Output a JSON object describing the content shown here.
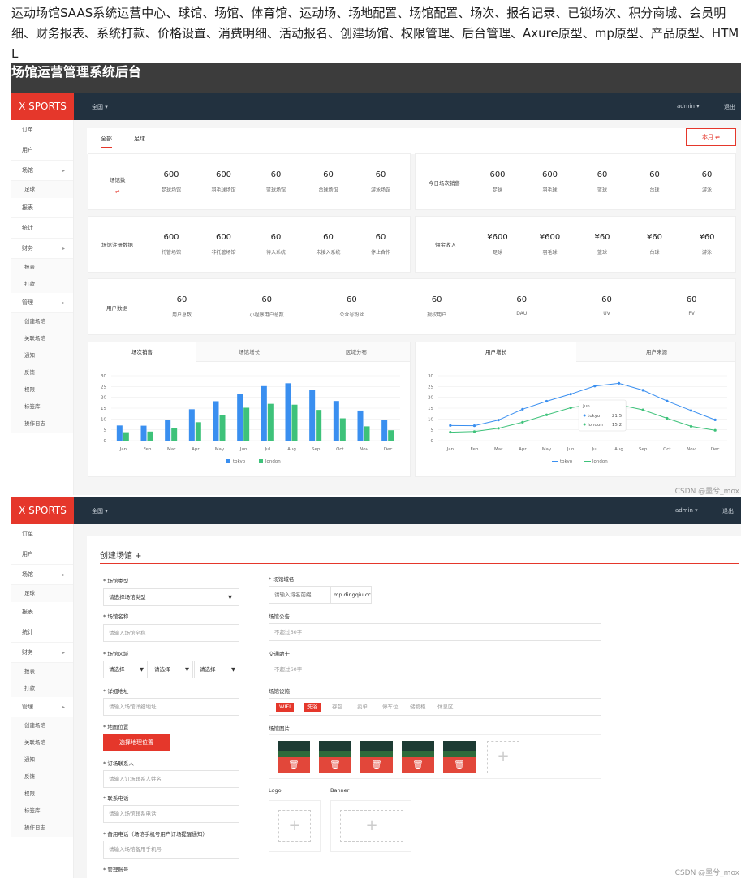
{
  "intro_text": "运动场馆SAAS系统运营中心、球馆、场馆、体育馆、运动场、场地配置、场馆配置、场次、报名记录、已锁场次、积分商城、会员明细、财务报表、系统打款、价格设置、消费明细、活动报名、创建场馆、权限管理、后台管理、Axure原型、mp原型、产品原型、HTML",
  "section_title": "场馆运营管理系统后台",
  "watermark": "CSDN @墨兮_mox",
  "app": {
    "logo": "X SPORTS",
    "nav_all": "全国 ▾",
    "nav_user": "admin ▾",
    "nav_logout": "退出"
  },
  "sidebar1": [
    {
      "label": "订单",
      "sub": false,
      "arrow": ""
    },
    {
      "label": "用户",
      "sub": false,
      "arrow": ""
    },
    {
      "label": "场馆",
      "sub": false,
      "arrow": "▸"
    },
    {
      "label": "足球",
      "sub": true,
      "arrow": ""
    },
    {
      "label": "报表",
      "sub": false,
      "arrow": ""
    },
    {
      "label": "统计",
      "sub": false,
      "arrow": ""
    },
    {
      "label": "财务",
      "sub": false,
      "arrow": "▸"
    },
    {
      "label": "报表",
      "sub": true,
      "arrow": ""
    },
    {
      "label": "打款",
      "sub": true,
      "arrow": ""
    },
    {
      "label": "管理",
      "sub": false,
      "arrow": "▸"
    },
    {
      "label": "创建场馆",
      "sub": true,
      "arrow": ""
    },
    {
      "label": "关联场馆",
      "sub": true,
      "arrow": ""
    },
    {
      "label": "通知",
      "sub": true,
      "arrow": ""
    },
    {
      "label": "反馈",
      "sub": true,
      "arrow": ""
    },
    {
      "label": "权限",
      "sub": true,
      "arrow": ""
    },
    {
      "label": "标签库",
      "sub": true,
      "arrow": ""
    },
    {
      "label": "操作日志",
      "sub": true,
      "arrow": ""
    }
  ],
  "dashboard": {
    "tab_all": "全部",
    "tab_football": "足球",
    "month_btn": "本月 ⇌",
    "row1": {
      "label": "场馆数",
      "swap": "⇌",
      "items": [
        {
          "n": "600",
          "l": "足球场馆"
        },
        {
          "n": "600",
          "l": "羽毛球场馆"
        },
        {
          "n": "60",
          "l": "篮球场馆"
        },
        {
          "n": "60",
          "l": "台球场馆"
        },
        {
          "n": "60",
          "l": "游泳场馆"
        }
      ]
    },
    "row1b": {
      "label": "今日场次销售",
      "items": [
        {
          "n": "600",
          "l": "足球"
        },
        {
          "n": "600",
          "l": "羽毛球"
        },
        {
          "n": "60",
          "l": "篮球"
        },
        {
          "n": "60",
          "l": "台球"
        },
        {
          "n": "60",
          "l": "游泳"
        }
      ]
    },
    "row2": {
      "label": "场馆注册数据",
      "items": [
        {
          "n": "600",
          "l": "托管场馆"
        },
        {
          "n": "600",
          "l": "非托管场馆"
        },
        {
          "n": "60",
          "l": "待入系统"
        },
        {
          "n": "60",
          "l": "未接入系统"
        },
        {
          "n": "60",
          "l": "停止合作"
        }
      ]
    },
    "row2b": {
      "label": "佣金收入",
      "items": [
        {
          "n": "¥600",
          "l": "足球"
        },
        {
          "n": "¥600",
          "l": "羽毛球"
        },
        {
          "n": "¥60",
          "l": "篮球"
        },
        {
          "n": "¥60",
          "l": "台球"
        },
        {
          "n": "¥60",
          "l": "游泳"
        }
      ]
    },
    "row3": {
      "label": "用户数据",
      "items": [
        {
          "n": "60",
          "l": "用户总数"
        },
        {
          "n": "60",
          "l": "小程序用户总数"
        },
        {
          "n": "60",
          "l": "公众号粉丝"
        },
        {
          "n": "60",
          "l": "授权用户"
        },
        {
          "n": "60",
          "l": "DAU"
        },
        {
          "n": "60",
          "l": "UV"
        },
        {
          "n": "60",
          "l": "PV"
        }
      ]
    },
    "left_tabs": [
      "场次销售",
      "场馆增长",
      "区域分布"
    ],
    "right_tabs": [
      "用户增长",
      "用户来源"
    ]
  },
  "chart_data": [
    {
      "type": "bar",
      "categories": [
        "Jan",
        "Feb",
        "Mar",
        "Apr",
        "May",
        "Jun",
        "Jul",
        "Aug",
        "Sep",
        "Oct",
        "Nov",
        "Dec"
      ],
      "series": [
        {
          "name": "tokyo",
          "values": [
            7,
            6.9,
            9.5,
            14.5,
            18.2,
            21.5,
            25.2,
            26.5,
            23.3,
            18.3,
            13.9,
            9.6
          ]
        },
        {
          "name": "london",
          "values": [
            3.9,
            4.2,
            5.7,
            8.5,
            11.9,
            15.2,
            17,
            16.6,
            14.2,
            10.3,
            6.6,
            4.8
          ]
        }
      ],
      "yticks": [
        0,
        5,
        10,
        15,
        20,
        25,
        30
      ],
      "ylim": [
        0,
        30
      ],
      "colors": [
        "#3a8ff0",
        "#3ec27a"
      ]
    },
    {
      "type": "line",
      "categories": [
        "Jan",
        "Feb",
        "Mar",
        "Apr",
        "May",
        "Jun",
        "Jul",
        "Aug",
        "Sep",
        "Oct",
        "Nov",
        "Dec"
      ],
      "series": [
        {
          "name": "tokyo",
          "values": [
            7,
            6.9,
            9.5,
            14.5,
            18.2,
            21.5,
            25.2,
            26.5,
            23.3,
            18.3,
            13.9,
            9.6
          ]
        },
        {
          "name": "london",
          "values": [
            3.9,
            4.2,
            5.7,
            8.5,
            11.9,
            15.2,
            17,
            16.6,
            14.2,
            10.3,
            6.6,
            4.8
          ]
        }
      ],
      "yticks": [
        0,
        5,
        10,
        15,
        20,
        25,
        30
      ],
      "ylim": [
        0,
        30
      ],
      "colors": [
        "#3a8ff0",
        "#3ec27a"
      ],
      "tooltip": {
        "title": "Jun",
        "rows": [
          {
            "name": "tokyo",
            "value": "21.5"
          },
          {
            "name": "london",
            "value": "15.2"
          }
        ]
      }
    }
  ],
  "sidebar2": [
    {
      "label": "订单",
      "sub": false,
      "arrow": ""
    },
    {
      "label": "用户",
      "sub": false,
      "arrow": ""
    },
    {
      "label": "场馆",
      "sub": false,
      "arrow": "▸"
    },
    {
      "label": "足球",
      "sub": true,
      "arrow": ""
    },
    {
      "label": "报表",
      "sub": false,
      "arrow": ""
    },
    {
      "label": "统计",
      "sub": false,
      "arrow": ""
    },
    {
      "label": "财务",
      "sub": false,
      "arrow": "▸"
    },
    {
      "label": "报表",
      "sub": true,
      "arrow": ""
    },
    {
      "label": "打款",
      "sub": true,
      "arrow": ""
    },
    {
      "label": "管理",
      "sub": false,
      "arrow": "▸"
    },
    {
      "label": "创建场馆",
      "sub": true,
      "arrow": ""
    },
    {
      "label": "关联场馆",
      "sub": true,
      "arrow": ""
    },
    {
      "label": "通知",
      "sub": true,
      "arrow": ""
    },
    {
      "label": "反馈",
      "sub": true,
      "arrow": ""
    },
    {
      "label": "权限",
      "sub": true,
      "arrow": ""
    },
    {
      "label": "标签库",
      "sub": true,
      "arrow": ""
    },
    {
      "label": "操作日志",
      "sub": true,
      "arrow": ""
    }
  ],
  "form": {
    "title": "创建场馆 +",
    "type_label": "* 场馆类型",
    "type_value": "请选择场馆类型",
    "name_label": "* 场馆名称",
    "name_ph": "请输入场馆全称",
    "region_label": "* 场馆区域",
    "region_opts": [
      "请选择",
      "请选择",
      "请选择"
    ],
    "addr_label": "* 详细地址",
    "addr_ph": "请输入场馆详细地址",
    "map_label": "* 地图位置",
    "map_btn": "选择地理位置",
    "contact_label": "* 订场联系人",
    "contact_ph": "请输入订场联系人姓名",
    "phone_label": "* 联系电话",
    "phone_ph": "请输入场馆联系电话",
    "backup_label": "* 备用电话（场馆手机号用户订场提醒通知）",
    "backup_ph": "请输入场馆备用手机号",
    "admin_label": "* 管理账号",
    "domain_label": "* 场馆域名",
    "domain_ph": "请输入域名前缀",
    "domain_suffix": "mp.dingqiu.cc",
    "notice_label": "场馆公告",
    "notice_ph": "不超过60字",
    "traffic_label": "交通助士",
    "traffic_ph": "不超过60字",
    "facility_label": "场馆设施",
    "facilities": [
      {
        "label": "WIFI",
        "on": true
      },
      {
        "label": "洗浴",
        "on": true
      },
      {
        "label": "存包",
        "on": false
      },
      {
        "label": "卖单",
        "on": false
      },
      {
        "label": "停车位",
        "on": false
      },
      {
        "label": "储物柜",
        "on": false
      },
      {
        "label": "休息区",
        "on": false
      }
    ],
    "images_label": "场馆图片",
    "logo_label": "Logo",
    "banner_label": "Banner"
  }
}
